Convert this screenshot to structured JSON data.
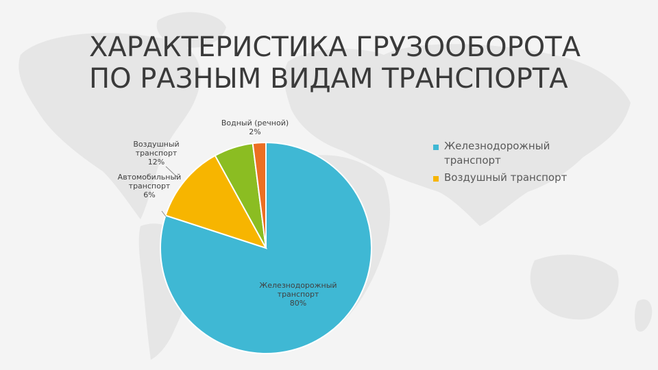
{
  "slide": {
    "title_line1": "ХАРАКТЕРИСТИКА ГРУЗООБОРОТА",
    "title_line2": "ПО РАЗНЫМ ВИДАМ ТРАНСПОРТА"
  },
  "chart_data": {
    "type": "pie",
    "title": "",
    "slices": [
      {
        "key": "rail",
        "name": "Железнодорожный транспорт",
        "label_lines": [
          "Железнодорожный",
          "транспорт",
          "80%"
        ],
        "value": 80,
        "color": "#3fb8d4"
      },
      {
        "key": "air",
        "name": "Воздушный транспорт",
        "label_lines": [
          "Воздушный",
          "транспорт",
          "12%"
        ],
        "value": 12,
        "color": "#f7b500"
      },
      {
        "key": "auto",
        "name": "Автомобильный транспорт",
        "label_lines": [
          "Автомобильный",
          "транспорт",
          "6%"
        ],
        "value": 6,
        "color": "#8bbd22"
      },
      {
        "key": "water",
        "name": "Водный (речной)",
        "label_lines": [
          "Водный (речной)",
          "2%"
        ],
        "value": 2,
        "color": "#ec6f23"
      }
    ],
    "legend": {
      "placement": "right",
      "items": [
        {
          "label": "Железнодорожный транспорт",
          "color": "#3fb8d4"
        },
        {
          "label": "Воздушный транспорт",
          "color": "#f7b500"
        }
      ]
    }
  }
}
